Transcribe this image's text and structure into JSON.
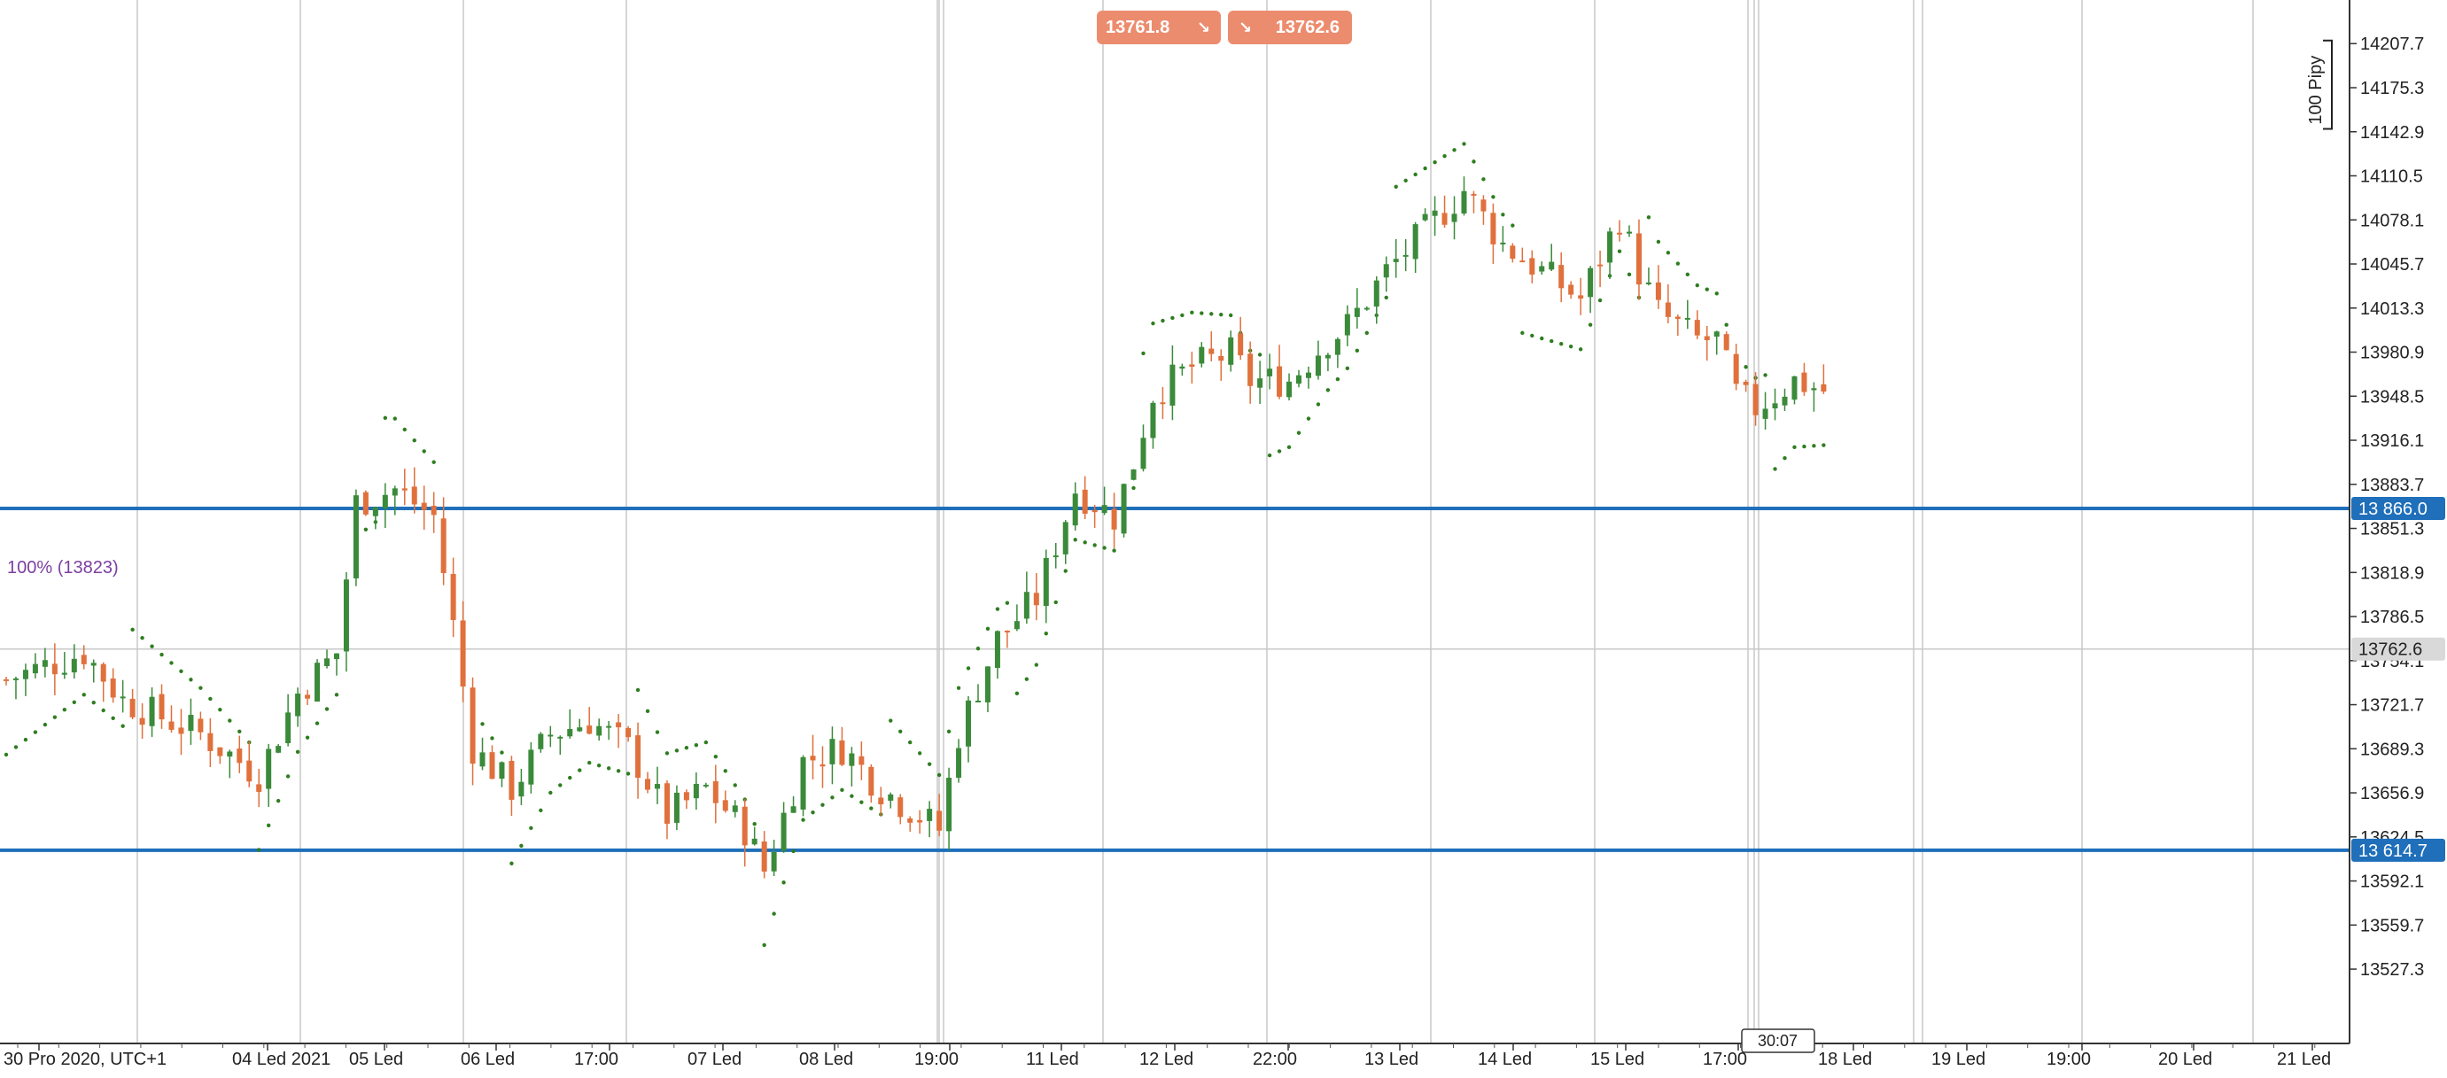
{
  "top_prices": {
    "sell_price": "13761.8",
    "buy_price": "13762.6",
    "sell_arrow": "↘",
    "buy_arrow": "↘",
    "color": "#ec8c6e"
  },
  "scale_bracket_label": "100 Pipy",
  "fib_label": "100% (13823)",
  "countdown": "30:07",
  "colors": {
    "bull": "#3a8a3a",
    "bear": "#e0703c",
    "sar": "#2e7d1f",
    "hline": "#1f6fba",
    "label_bg": "#1f6fba",
    "current_price_bg": "#d9d9d9",
    "grid": "#c8c8c8",
    "fib_text": "#7b3fa0"
  },
  "chart_data": {
    "type": "candlestick",
    "y_axis": {
      "range": [
        13500,
        14230
      ],
      "tick_labels": [
        "14207.7",
        "14175.3",
        "14142.9",
        "14110.5",
        "14078.1",
        "14045.7",
        "14013.3",
        "13980.9",
        "13948.5",
        "13916.1",
        "13883.7",
        "13851.3",
        "13818.9",
        "13786.5",
        "13754.1",
        "13721.7",
        "13689.3",
        "13656.9",
        "13624.5",
        "13592.1",
        "13559.7",
        "13527.3"
      ]
    },
    "x_axis": {
      "tick_labels": [
        "30 Pro 2020, UTC+1",
        "04 Led 2021",
        "05 Led",
        "06 Led",
        "17:00",
        "07 Led",
        "08 Led",
        "19:00",
        "11 Led",
        "12 Led",
        "22:00",
        "13 Led",
        "14 Led",
        "15 Led",
        "17:00",
        "18 Led",
        "19 Led",
        "19:00",
        "20 Led",
        "21 Led"
      ]
    },
    "horizontal_lines": [
      {
        "price": 13866.0,
        "label": "13 866.0"
      },
      {
        "price": 13614.7,
        "label": "13 614.7"
      }
    ],
    "current_price": {
      "price": 13762.6,
      "label": "13762.6"
    },
    "fib_level": 13823,
    "candle_count": 188,
    "close_path": [
      [
        0,
        13740
      ],
      [
        8,
        13760
      ],
      [
        12,
        13725
      ],
      [
        20,
        13700
      ],
      [
        26,
        13670
      ],
      [
        30,
        13730
      ],
      [
        34,
        13760
      ],
      [
        36,
        13870
      ],
      [
        40,
        13880
      ],
      [
        44,
        13860
      ],
      [
        46,
        13780
      ],
      [
        48,
        13690
      ],
      [
        52,
        13660
      ],
      [
        56,
        13700
      ],
      [
        60,
        13710
      ],
      [
        64,
        13690
      ],
      [
        68,
        13640
      ],
      [
        72,
        13660
      ],
      [
        76,
        13630
      ],
      [
        78,
        13600
      ],
      [
        82,
        13680
      ],
      [
        86,
        13690
      ],
      [
        90,
        13660
      ],
      [
        92,
        13650
      ],
      [
        96,
        13630
      ],
      [
        98,
        13700
      ],
      [
        102,
        13770
      ],
      [
        106,
        13800
      ],
      [
        110,
        13880
      ],
      [
        112,
        13870
      ],
      [
        114,
        13860
      ],
      [
        116,
        13900
      ],
      [
        118,
        13950
      ],
      [
        122,
        13970
      ],
      [
        126,
        13980
      ],
      [
        128,
        13960
      ],
      [
        132,
        13960
      ],
      [
        136,
        13990
      ],
      [
        138,
        14000
      ],
      [
        142,
        14040
      ],
      [
        146,
        14070
      ],
      [
        150,
        14100
      ],
      [
        154,
        14060
      ],
      [
        158,
        14040
      ],
      [
        162,
        14020
      ],
      [
        166,
        14080
      ],
      [
        168,
        14040
      ],
      [
        170,
        14010
      ],
      [
        172,
        14000
      ],
      [
        174,
        13990
      ],
      [
        176,
        13990
      ],
      [
        178,
        13950
      ],
      [
        180,
        13940
      ],
      [
        184,
        13960
      ],
      [
        188,
        13950
      ],
      [
        192,
        13940
      ],
      [
        196,
        13980
      ]
    ]
  }
}
